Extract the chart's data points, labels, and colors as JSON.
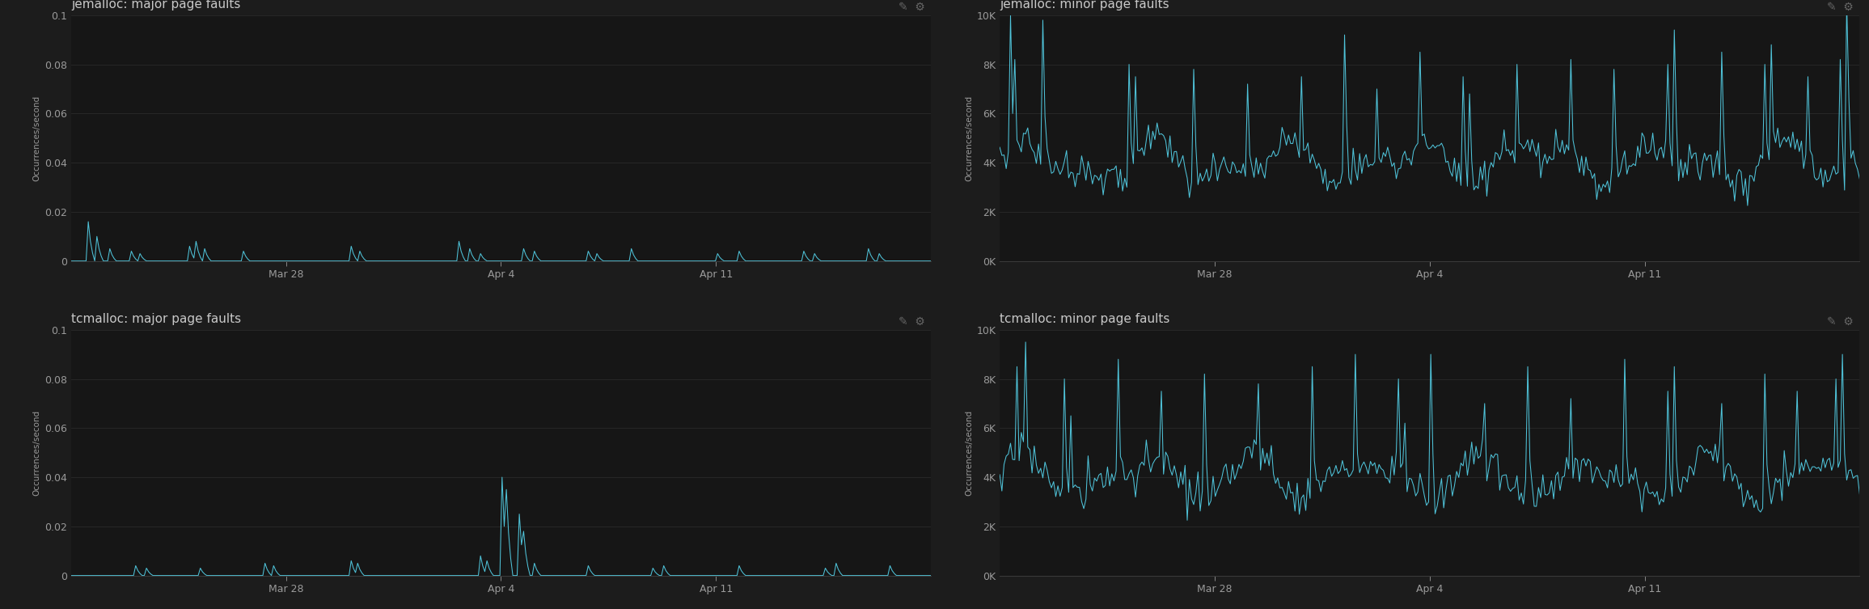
{
  "bg_color": "#1c1c1c",
  "panel_title_bg": "#212121",
  "plot_bg": "#161616",
  "line_color": "#4fc3d9",
  "text_color": "#9a9a9a",
  "title_color": "#c8c8c8",
  "grid_color": "#2a2a2a",
  "axis_line_color": "#3a3a3a",
  "border_color": "#2e2e2e",
  "titles": [
    "jemalloc: major page faults",
    "jemalloc: minor page faults",
    "tcmalloc: major page faults",
    "tcmalloc: minor page faults"
  ],
  "ylabel": "Occurrences/second",
  "major_ylim": [
    0,
    0.1
  ],
  "major_yticks": [
    0,
    0.02,
    0.04,
    0.06,
    0.08,
    0.1
  ],
  "major_ytick_labels": [
    "0",
    "0.02",
    "0.04",
    "0.06",
    "0.08",
    "0.1"
  ],
  "minor_ylim": [
    0,
    10000
  ],
  "minor_yticks": [
    0,
    2000,
    4000,
    6000,
    8000,
    10000
  ],
  "minor_ytick_labels": [
    "0K",
    "2K",
    "4K",
    "6K",
    "8K",
    "10K"
  ],
  "x_tick_positions": [
    0.25,
    0.5,
    0.75
  ],
  "x_tick_labels": [
    "Mar 28",
    "Apr 4",
    "Apr 11"
  ],
  "icon_color": "#666666"
}
